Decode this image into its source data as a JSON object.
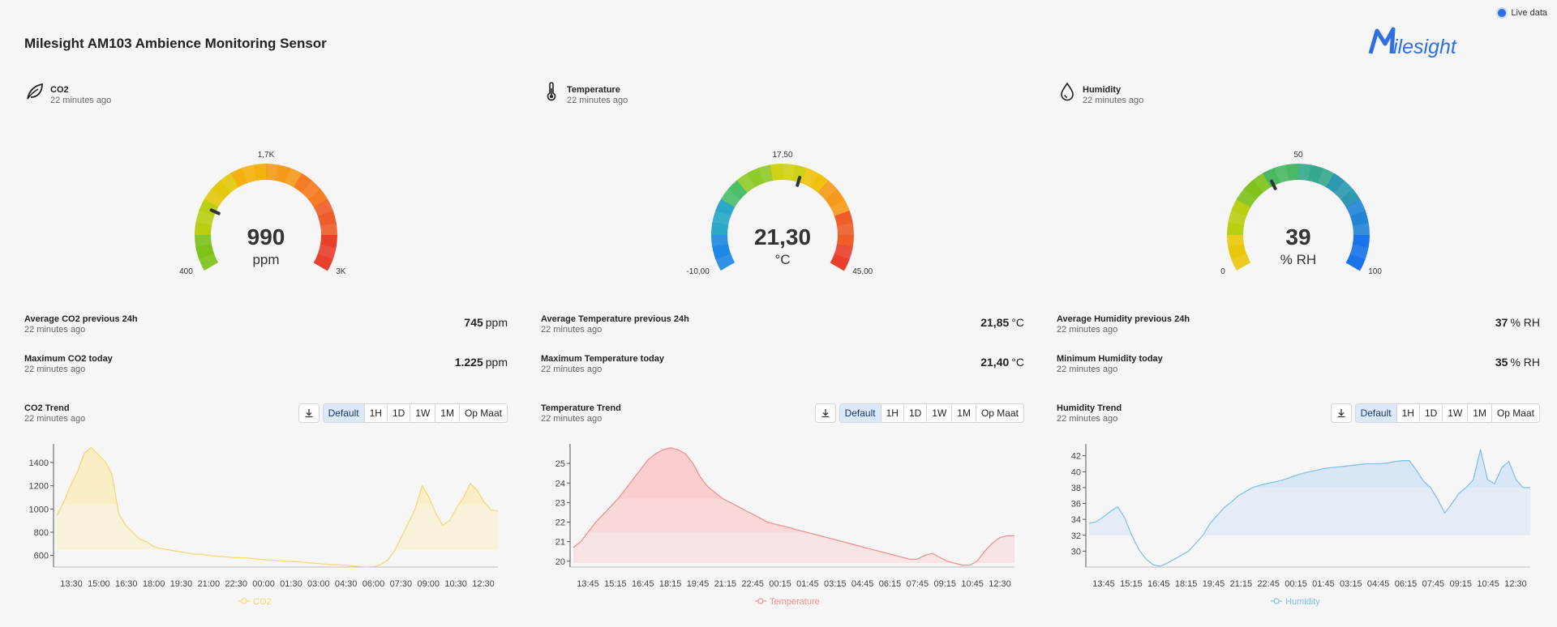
{
  "header": {
    "title": "Milesight AM103 Ambience Monitoring Sensor",
    "live_label": "Live data",
    "logo_text": "Milesight"
  },
  "panels": [
    {
      "title": "CO2",
      "sub": "22 minutes ago",
      "icon": "leaf-icon",
      "gauge": {
        "value": 990,
        "value_label": "990",
        "unit": "ppm",
        "min": 400,
        "max": 3000,
        "min_label": "400",
        "max_label": "3K",
        "mid_label": "1,7K",
        "palette": "co2"
      },
      "avg": {
        "title": "Average CO2 previous 24h",
        "sub": "22 minutes ago",
        "value": "745",
        "unit": "ppm"
      },
      "extreme": {
        "title": "Maximum CO2 today",
        "sub": "22 minutes ago",
        "value": "1.225",
        "unit": "ppm"
      },
      "trend": {
        "title": "CO2 Trend",
        "sub": "22 minutes ago"
      },
      "toolbar": {
        "download_icon": "download-icon",
        "ranges": [
          "Default",
          "1H",
          "1D",
          "1W",
          "1M",
          "Op Maat"
        ],
        "active": "Default"
      },
      "color": "#f5d76e",
      "fill": "#fbeaa6"
    },
    {
      "title": "Temperature",
      "sub": "22 minutes ago",
      "icon": "thermometer-icon",
      "gauge": {
        "value": 21.3,
        "value_label": "21,30",
        "unit": "°C",
        "min": -10,
        "max": 45,
        "min_label": "-10,00",
        "max_label": "45,00",
        "mid_label": "17,50",
        "palette": "temp"
      },
      "avg": {
        "title": "Average Temperature previous 24h",
        "sub": "22 minutes ago",
        "value": "21,85",
        "unit": "°C"
      },
      "extreme": {
        "title": "Maximum Temperature today",
        "sub": "22 minutes ago",
        "value": "21,40",
        "unit": "°C"
      },
      "trend": {
        "title": "Temperature Trend",
        "sub": "22 minutes ago"
      },
      "toolbar": {
        "download_icon": "download-icon",
        "ranges": [
          "Default",
          "1H",
          "1D",
          "1W",
          "1M",
          "Op Maat"
        ],
        "active": "Default"
      },
      "color": "#f28b8b",
      "fill": "#fbc4c4"
    },
    {
      "title": "Humidity",
      "sub": "22 minutes ago",
      "icon": "droplet-icon",
      "gauge": {
        "value": 39,
        "value_label": "39",
        "unit": "% RH",
        "min": 0,
        "max": 100,
        "min_label": "0",
        "max_label": "100",
        "mid_label": "50",
        "palette": "hum"
      },
      "avg": {
        "title": "Average Humidity previous 24h",
        "sub": "22 minutes ago",
        "value": "37",
        "unit": "% RH"
      },
      "extreme": {
        "title": "Minimum Humidity today",
        "sub": "22 minutes ago",
        "value": "35",
        "unit": "% RH"
      },
      "trend": {
        "title": "Humidity Trend",
        "sub": "22 minutes ago"
      },
      "toolbar": {
        "download_icon": "download-icon",
        "ranges": [
          "Default",
          "1H",
          "1D",
          "1W",
          "1M",
          "Op Maat"
        ],
        "active": "Default"
      },
      "color": "#7fbdf0",
      "fill": "#c3def7"
    }
  ],
  "chart_data": [
    {
      "type": "area",
      "series": [
        {
          "name": "CO2",
          "values": [
            940,
            1060,
            1200,
            1320,
            1480,
            1530,
            1470,
            1410,
            1300,
            960,
            860,
            800,
            740,
            720,
            680,
            660,
            650,
            640,
            630,
            620,
            610,
            610,
            600,
            595,
            590,
            585,
            580,
            580,
            575,
            570,
            565,
            560,
            555,
            550,
            548,
            545,
            540,
            535,
            530,
            525,
            520,
            520,
            515,
            510,
            505,
            500,
            505,
            520,
            560,
            640,
            760,
            880,
            1000,
            1200,
            1100,
            960,
            860,
            900,
            1010,
            1100,
            1220,
            1160,
            1060,
            990,
            985
          ]
        }
      ],
      "x_ticks": [
        "13:30",
        "15:00",
        "16:30",
        "18:00",
        "19:30",
        "21:00",
        "22:30",
        "00:00",
        "01:30",
        "03:00",
        "04:30",
        "06:00",
        "07:30",
        "09:00",
        "10:30",
        "12:30"
      ],
      "y_ticks": [
        600,
        800,
        1000,
        1200,
        1400
      ],
      "ylim": [
        500,
        1560
      ],
      "bands": [
        650,
        1040
      ],
      "legend": "CO2"
    },
    {
      "type": "area",
      "series": [
        {
          "name": "Temperature",
          "values": [
            20.7,
            21.0,
            21.5,
            22.0,
            22.4,
            22.8,
            23.2,
            23.7,
            24.2,
            24.7,
            25.2,
            25.5,
            25.7,
            25.8,
            25.7,
            25.5,
            25.0,
            24.3,
            23.8,
            23.5,
            23.2,
            23.0,
            22.8,
            22.6,
            22.4,
            22.2,
            22.0,
            21.9,
            21.8,
            21.7,
            21.6,
            21.5,
            21.4,
            21.3,
            21.2,
            21.1,
            21.0,
            20.9,
            20.8,
            20.7,
            20.6,
            20.5,
            20.4,
            20.3,
            20.2,
            20.1,
            20.1,
            20.3,
            20.4,
            20.2,
            20.0,
            19.9,
            19.8,
            19.8,
            20.0,
            20.5,
            20.9,
            21.2,
            21.3,
            21.3
          ]
        }
      ],
      "x_ticks": [
        "13:45",
        "15:15",
        "16:45",
        "18:15",
        "19:45",
        "21:15",
        "22:45",
        "00:15",
        "01:45",
        "03:15",
        "04:45",
        "06:15",
        "07:45",
        "09:15",
        "10:45",
        "12:30"
      ],
      "y_ticks": [
        20,
        21,
        22,
        23,
        24,
        25
      ],
      "ylim": [
        19.7,
        26.0
      ],
      "bands": [
        19.9,
        21.5,
        23.2
      ],
      "legend": "Temperature"
    },
    {
      "type": "area",
      "series": [
        {
          "name": "Humidity",
          "values": [
            33.5,
            33.7,
            34.3,
            35.0,
            35.6,
            34.2,
            32.0,
            30.2,
            29.0,
            28.3,
            28.1,
            28.5,
            29.0,
            29.5,
            30.0,
            31.0,
            32.0,
            33.5,
            34.5,
            35.5,
            36.2,
            37.0,
            37.5,
            38.0,
            38.3,
            38.5,
            38.7,
            38.9,
            39.2,
            39.5,
            39.8,
            40.0,
            40.2,
            40.4,
            40.5,
            40.6,
            40.7,
            40.8,
            40.9,
            41.0,
            41.0,
            41.0,
            41.1,
            41.3,
            41.4,
            41.4,
            40.2,
            38.8,
            38.0,
            36.5,
            34.8,
            36.0,
            37.3,
            38.0,
            39.0,
            42.8,
            39.0,
            38.5,
            40.5,
            41.3,
            39.0,
            38.0,
            38.0
          ]
        }
      ],
      "x_ticks": [
        "13:45",
        "15:15",
        "16:45",
        "18:15",
        "19:45",
        "21:15",
        "22:45",
        "00:15",
        "01:45",
        "03:15",
        "04:45",
        "06:15",
        "07:45",
        "09:15",
        "10:45",
        "12:30"
      ],
      "y_ticks": [
        30,
        32,
        34,
        36,
        38,
        40,
        42
      ],
      "ylim": [
        28.0,
        43.5
      ],
      "bands": [
        32.0,
        38.0
      ],
      "legend": "Humidity"
    }
  ]
}
